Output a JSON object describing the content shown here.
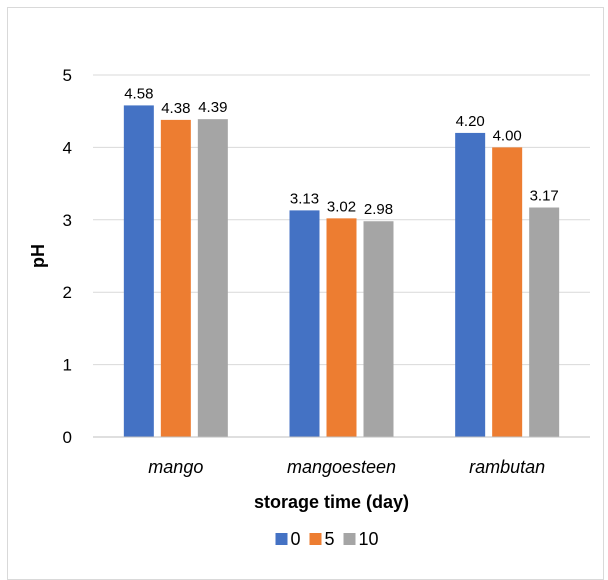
{
  "chart_data": {
    "type": "bar",
    "title": "",
    "xlabel": "storage time (day)",
    "ylabel": "pH",
    "categories": [
      "mango",
      "mangoesteen",
      "rambutan"
    ],
    "ylim": [
      0,
      5
    ],
    "yticks": [
      0,
      1,
      2,
      3,
      4,
      5
    ],
    "grid": true,
    "legend_position": "bottom",
    "series": [
      {
        "name": "0",
        "color": "#4472c4",
        "values": [
          4.58,
          3.13,
          4.2
        ],
        "labels": [
          "4.58",
          "3.13",
          "4.20"
        ]
      },
      {
        "name": "5",
        "color": "#ed7d31",
        "values": [
          4.38,
          3.02,
          4.0
        ],
        "labels": [
          "4.38",
          "3.02",
          "4.00"
        ]
      },
      {
        "name": "10",
        "color": "#a5a5a5",
        "values": [
          4.39,
          2.98,
          3.17
        ],
        "labels": [
          "4.39",
          "2.98",
          "3.17"
        ]
      }
    ]
  }
}
